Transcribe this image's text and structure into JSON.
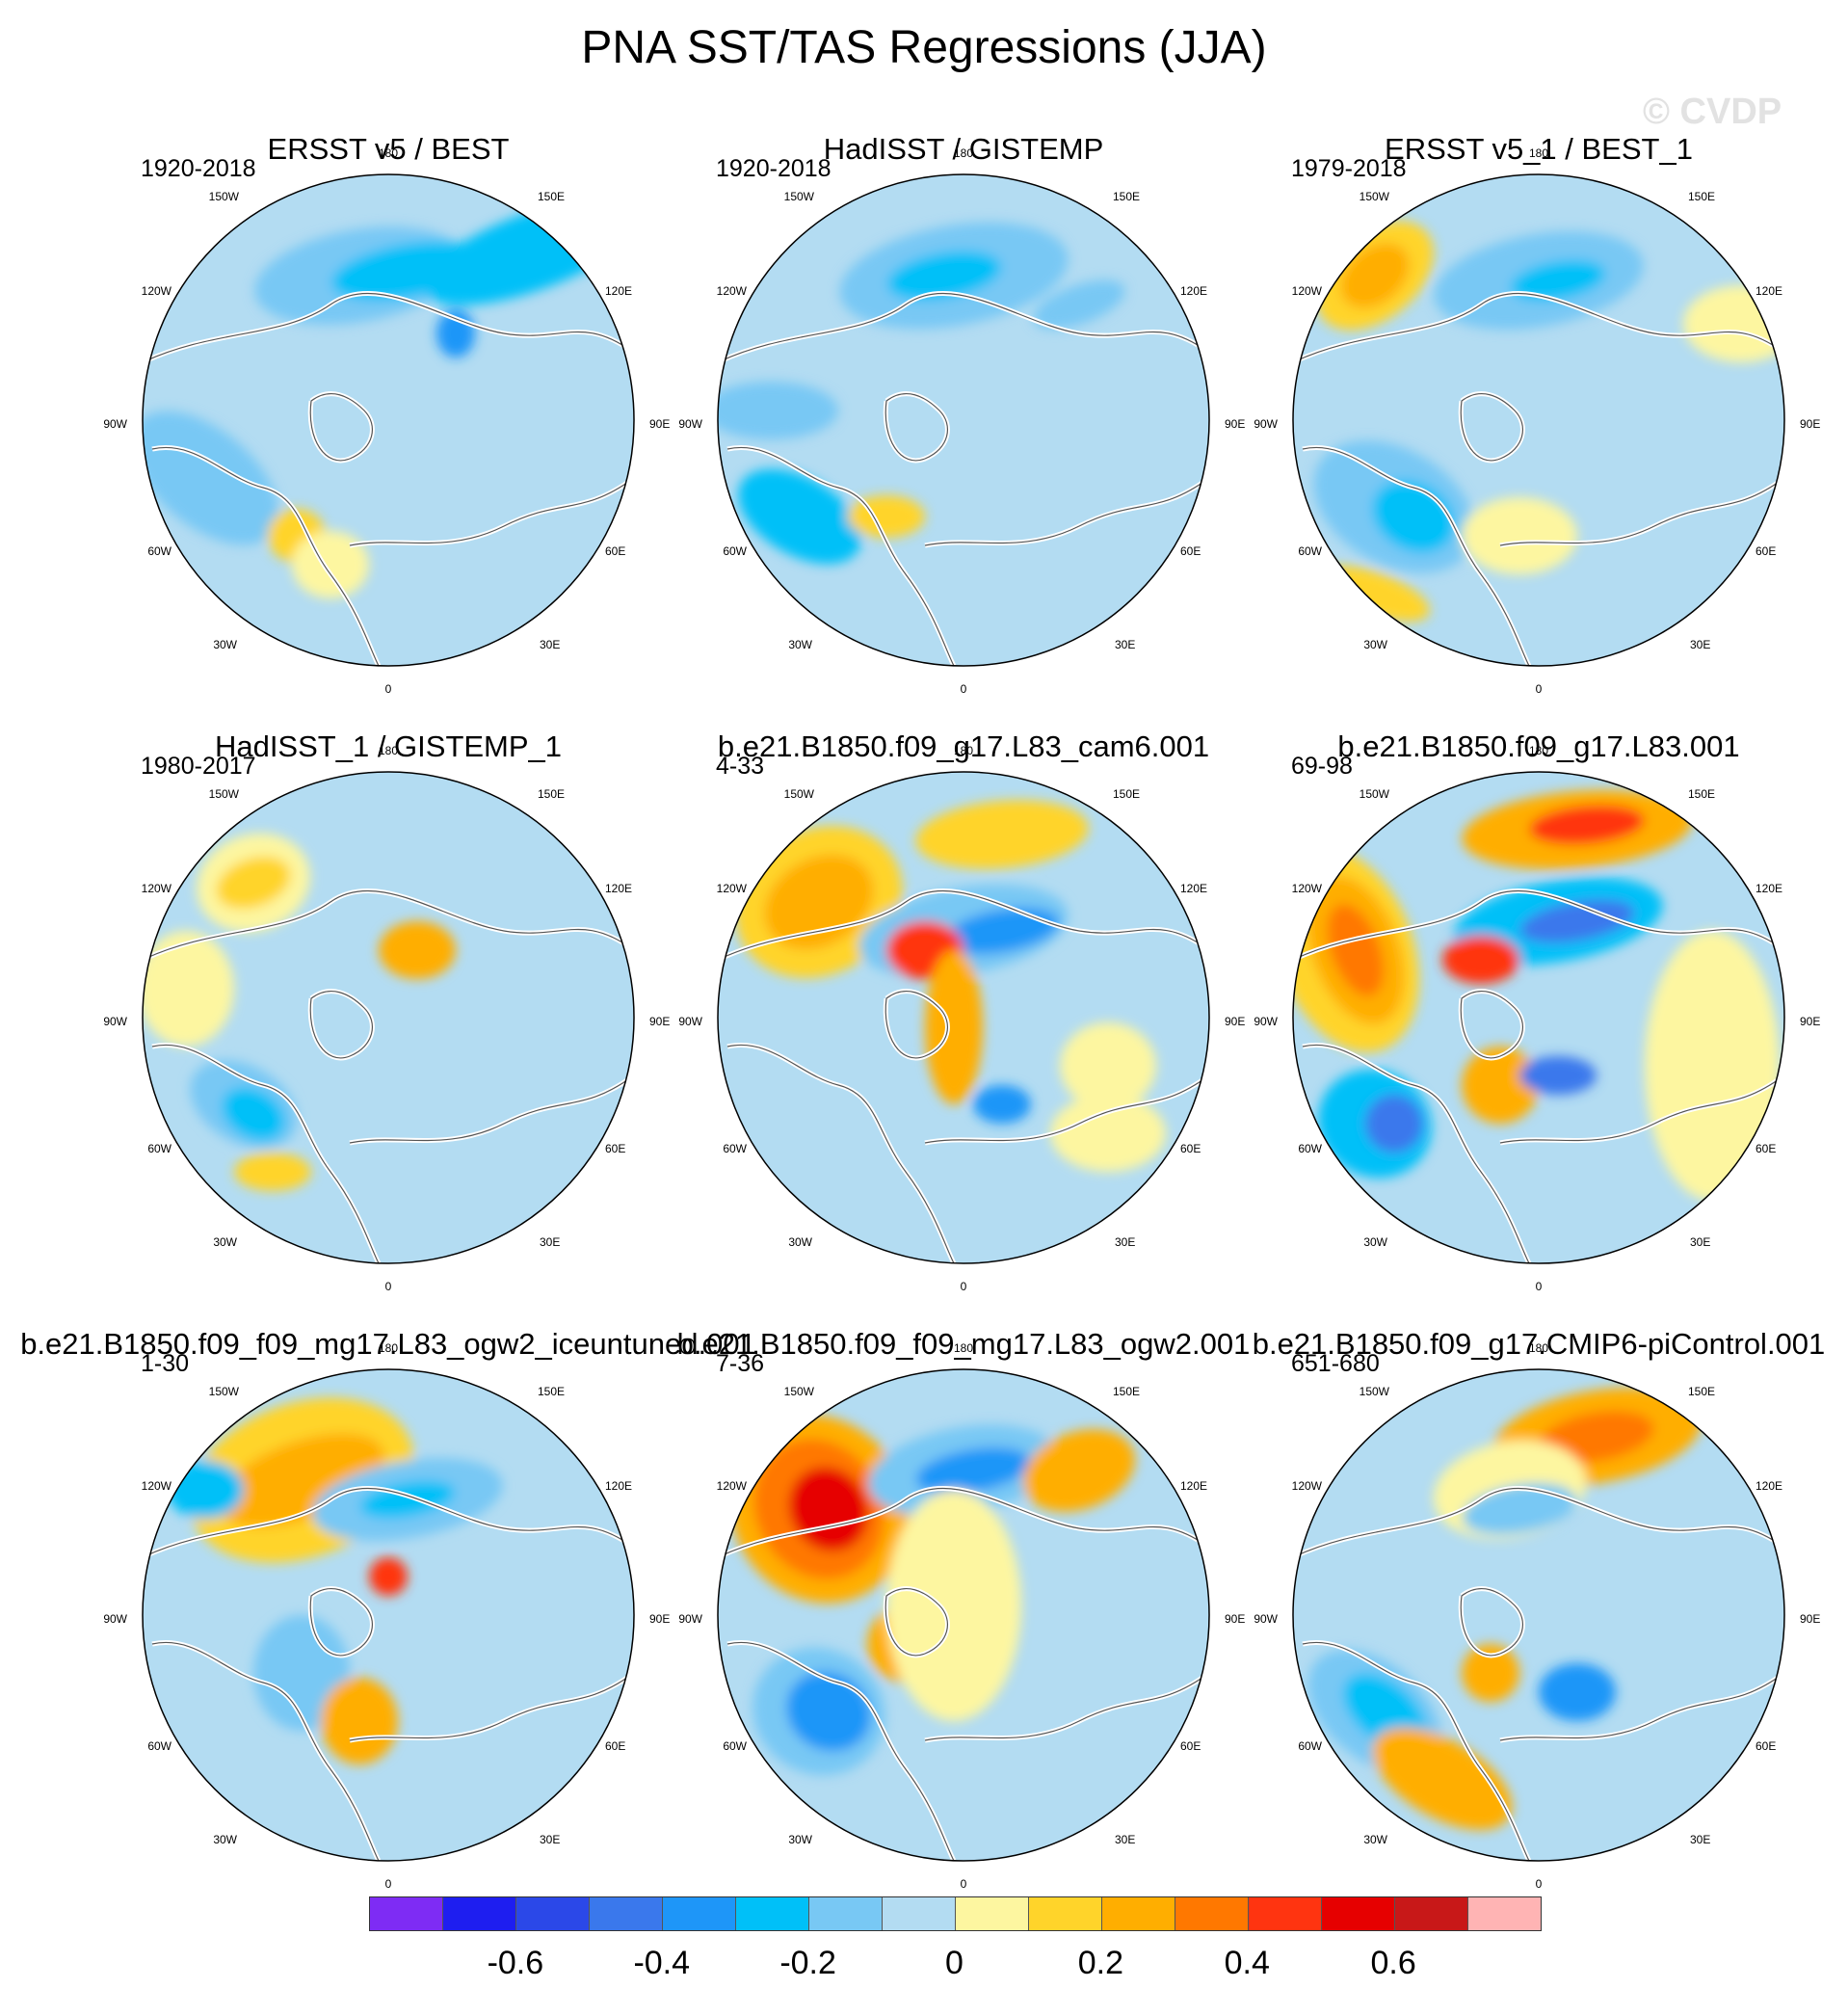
{
  "title": "PNA SST/TAS Regressions (JJA)",
  "watermark": "© CVDP",
  "colors": {
    "ocean_base": "#b3dcf2",
    "land_outline": "#555555",
    "palette": [
      "#7e2cf4",
      "#1e1ef0",
      "#2b48e8",
      "#3a78ec",
      "#1e96f8",
      "#00c0f8",
      "#78c8f4",
      "#b3dcf2",
      "#fdf6a0",
      "#ffd42a",
      "#ffae00",
      "#ff7800",
      "#ff3410",
      "#e60000",
      "#c81818",
      "#ffb4b4"
    ]
  },
  "lon_labels": {
    "top": "180",
    "bottom": "0",
    "upper_left": "150W",
    "upper_right": "150E",
    "left_upper": "120W",
    "right_upper": "120E",
    "left_mid": "90W",
    "right_mid": "90E",
    "left_lower": "60W",
    "right_lower": "60E",
    "lower_left": "30W",
    "lower_right": "30E"
  },
  "panels": [
    {
      "title": "ERSST v5 / BEST",
      "years": "1920-2018"
    },
    {
      "title": "HadISST / GISTEMP",
      "years": "1920-2018"
    },
    {
      "title": "ERSST v5_1 / BEST_1",
      "years": "1979-2018"
    },
    {
      "title": "HadISST_1 / GISTEMP_1",
      "years": "1980-2017"
    },
    {
      "title": "b.e21.B1850.f09_g17.L83_cam6.001",
      "years": "4-33"
    },
    {
      "title": "b.e21.B1850.f09_g17.L83.001",
      "years": "69-98"
    },
    {
      "title": "b.e21.B1850.f09_f09_mg17.L83_ogw2_iceuntuned.001",
      "years": "1-30"
    },
    {
      "title": "b.e21.B1850.f09_f09_mg17.L83_ogw2.001",
      "years": "7-36"
    },
    {
      "title": "b.e21.B1850.f09_g17.CMIP6-piControl.001",
      "years": "651-680"
    }
  ],
  "colorbar": {
    "labels": [
      "-0.6",
      "-0.4",
      "-0.2",
      "0",
      "0.2",
      "0.4",
      "0.6"
    ]
  }
}
